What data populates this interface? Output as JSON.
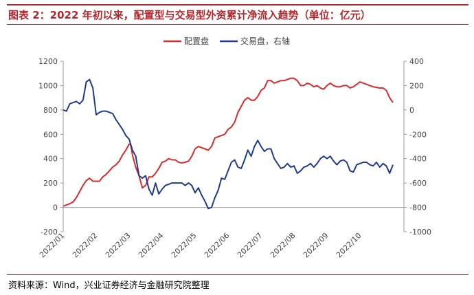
{
  "header": {
    "title": "图表 2：2022 年初以来，配置型与交易型外资累计净流入趋势（单位：亿元）"
  },
  "footer": {
    "source": "资料来源：Wind，兴业证券经济与金融研究院整理"
  },
  "colors": {
    "accent": "#b4282d",
    "series_config": "#d9292b",
    "series_trade": "#1f3a8f",
    "axis": "#999999"
  },
  "chart_data": {
    "type": "line",
    "title": "",
    "xlabel": "",
    "ylabel": "",
    "x_tick_labels": [
      "2022/01",
      "2022/02",
      "2022/03",
      "2022/04",
      "2022/05",
      "2022/06",
      "2022/07",
      "2022/08",
      "2022/09",
      "2022/10"
    ],
    "y_left": {
      "ticks": [
        "-200",
        "0",
        "200",
        "400",
        "600",
        "800",
        "1000",
        "1200"
      ],
      "ylim": [
        -200,
        1200
      ]
    },
    "y_right": {
      "ticks": [
        "-1000",
        "-800",
        "-600",
        "-400",
        "-200",
        "0",
        "200",
        "400"
      ],
      "ylim": [
        -1000,
        400
      ]
    },
    "legend": [
      "配置盘",
      "交易盘，右轴"
    ],
    "legend_position": "top-center",
    "grid": false,
    "series": [
      {
        "name": "配置盘",
        "axis": "left",
        "color": "#d9292b",
        "points": [
          [
            0.0,
            10
          ],
          [
            0.1,
            20
          ],
          [
            0.2,
            30
          ],
          [
            0.3,
            45
          ],
          [
            0.4,
            80
          ],
          [
            0.5,
            130
          ],
          [
            0.6,
            180
          ],
          [
            0.7,
            220
          ],
          [
            0.8,
            240
          ],
          [
            0.9,
            215
          ],
          [
            1.0,
            215
          ],
          [
            1.1,
            215
          ],
          [
            1.2,
            250
          ],
          [
            1.3,
            270
          ],
          [
            1.4,
            300
          ],
          [
            1.5,
            330
          ],
          [
            1.6,
            350
          ],
          [
            1.7,
            380
          ],
          [
            1.8,
            430
          ],
          [
            1.9,
            470
          ],
          [
            2.0,
            520
          ],
          [
            2.05,
            510
          ],
          [
            2.1,
            430
          ],
          [
            2.2,
            330
          ],
          [
            2.3,
            260
          ],
          [
            2.4,
            160
          ],
          [
            2.5,
            180
          ],
          [
            2.6,
            250
          ],
          [
            2.7,
            250
          ],
          [
            2.8,
            280
          ],
          [
            2.9,
            320
          ],
          [
            3.0,
            370
          ],
          [
            3.1,
            380
          ],
          [
            3.2,
            400
          ],
          [
            3.3,
            390
          ],
          [
            3.4,
            390
          ],
          [
            3.5,
            370
          ],
          [
            3.6,
            365
          ],
          [
            3.7,
            370
          ],
          [
            3.8,
            380
          ],
          [
            3.9,
            420
          ],
          [
            4.0,
            480
          ],
          [
            4.1,
            500
          ],
          [
            4.2,
            490
          ],
          [
            4.3,
            480
          ],
          [
            4.4,
            470
          ],
          [
            4.5,
            500
          ],
          [
            4.6,
            570
          ],
          [
            4.7,
            580
          ],
          [
            4.8,
            590
          ],
          [
            4.9,
            600
          ],
          [
            5.0,
            640
          ],
          [
            5.1,
            660
          ],
          [
            5.2,
            700
          ],
          [
            5.3,
            780
          ],
          [
            5.4,
            830
          ],
          [
            5.5,
            880
          ],
          [
            5.6,
            900
          ],
          [
            5.7,
            880
          ],
          [
            5.8,
            880
          ],
          [
            5.9,
            910
          ],
          [
            6.0,
            960
          ],
          [
            6.1,
            980
          ],
          [
            6.2,
            1040
          ],
          [
            6.3,
            1040
          ],
          [
            6.4,
            1020
          ],
          [
            6.5,
            1030
          ],
          [
            6.6,
            1040
          ],
          [
            6.7,
            1040
          ],
          [
            6.8,
            1050
          ],
          [
            6.9,
            1060
          ],
          [
            7.0,
            1060
          ],
          [
            7.1,
            1040
          ],
          [
            7.2,
            1000
          ],
          [
            7.3,
            1000
          ],
          [
            7.4,
            1020
          ],
          [
            7.5,
            1010
          ],
          [
            7.6,
            990
          ],
          [
            7.7,
            1000
          ],
          [
            7.8,
            980
          ],
          [
            7.9,
            970
          ],
          [
            8.0,
            1000
          ],
          [
            8.1,
            1020
          ],
          [
            8.2,
            1000
          ],
          [
            8.3,
            990
          ],
          [
            8.4,
            990
          ],
          [
            8.5,
            1000
          ],
          [
            8.6,
            1000
          ],
          [
            8.7,
            980
          ],
          [
            8.8,
            990
          ],
          [
            8.9,
            1010
          ],
          [
            9.0,
            1030
          ],
          [
            9.1,
            1020
          ],
          [
            9.2,
            1010
          ],
          [
            9.3,
            1000
          ],
          [
            9.4,
            990
          ],
          [
            9.5,
            985
          ],
          [
            9.6,
            980
          ],
          [
            9.7,
            980
          ],
          [
            9.8,
            960
          ],
          [
            9.9,
            900
          ],
          [
            10.0,
            860
          ]
        ]
      },
      {
        "name": "交易盘，右轴",
        "axis": "right",
        "color": "#1f3a8f",
        "points": [
          [
            0.0,
            0
          ],
          [
            0.1,
            -10
          ],
          [
            0.2,
            50
          ],
          [
            0.3,
            60
          ],
          [
            0.4,
            70
          ],
          [
            0.5,
            50
          ],
          [
            0.6,
            80
          ],
          [
            0.7,
            230
          ],
          [
            0.8,
            250
          ],
          [
            0.9,
            180
          ],
          [
            1.0,
            -40
          ],
          [
            1.1,
            -20
          ],
          [
            1.2,
            -10
          ],
          [
            1.3,
            -10
          ],
          [
            1.4,
            -20
          ],
          [
            1.5,
            -30
          ],
          [
            1.6,
            -80
          ],
          [
            1.7,
            -120
          ],
          [
            1.8,
            -160
          ],
          [
            1.9,
            -210
          ],
          [
            2.0,
            -240
          ],
          [
            2.1,
            -330
          ],
          [
            2.2,
            -380
          ],
          [
            2.3,
            -540
          ],
          [
            2.4,
            -560
          ],
          [
            2.5,
            -540
          ],
          [
            2.6,
            -650
          ],
          [
            2.7,
            -700
          ],
          [
            2.8,
            -600
          ],
          [
            2.9,
            -690
          ],
          [
            3.0,
            -650
          ],
          [
            3.1,
            -620
          ],
          [
            3.2,
            -610
          ],
          [
            3.3,
            -600
          ],
          [
            3.4,
            -600
          ],
          [
            3.5,
            -600
          ],
          [
            3.6,
            -600
          ],
          [
            3.7,
            -620
          ],
          [
            3.8,
            -600
          ],
          [
            3.9,
            -620
          ],
          [
            4.0,
            -680
          ],
          [
            4.1,
            -640
          ],
          [
            4.2,
            -700
          ],
          [
            4.3,
            -750
          ],
          [
            4.4,
            -810
          ],
          [
            4.5,
            -800
          ],
          [
            4.6,
            -720
          ],
          [
            4.7,
            -660
          ],
          [
            4.8,
            -560
          ],
          [
            4.9,
            -570
          ],
          [
            5.0,
            -500
          ],
          [
            5.1,
            -430
          ],
          [
            5.2,
            -410
          ],
          [
            5.3,
            -470
          ],
          [
            5.4,
            -480
          ],
          [
            5.5,
            -410
          ],
          [
            5.6,
            -330
          ],
          [
            5.7,
            -380
          ],
          [
            5.8,
            -300
          ],
          [
            5.9,
            -250
          ],
          [
            6.0,
            -300
          ],
          [
            6.1,
            -340
          ],
          [
            6.2,
            -320
          ],
          [
            6.3,
            -320
          ],
          [
            6.4,
            -400
          ],
          [
            6.5,
            -440
          ],
          [
            6.6,
            -480
          ],
          [
            6.7,
            -470
          ],
          [
            6.8,
            -440
          ],
          [
            6.9,
            -470
          ],
          [
            7.0,
            -460
          ],
          [
            7.1,
            -520
          ],
          [
            7.2,
            -500
          ],
          [
            7.3,
            -470
          ],
          [
            7.4,
            -460
          ],
          [
            7.5,
            -440
          ],
          [
            7.6,
            -470
          ],
          [
            7.7,
            -440
          ],
          [
            7.8,
            -400
          ],
          [
            7.9,
            -380
          ],
          [
            8.0,
            -400
          ],
          [
            8.1,
            -380
          ],
          [
            8.2,
            -420
          ],
          [
            8.3,
            -450
          ],
          [
            8.4,
            -420
          ],
          [
            8.5,
            -410
          ],
          [
            8.6,
            -430
          ],
          [
            8.7,
            -500
          ],
          [
            8.8,
            -510
          ],
          [
            8.9,
            -450
          ],
          [
            9.0,
            -440
          ],
          [
            9.1,
            -430
          ],
          [
            9.2,
            -430
          ],
          [
            9.3,
            -450
          ],
          [
            9.4,
            -460
          ],
          [
            9.5,
            -430
          ],
          [
            9.6,
            -470
          ],
          [
            9.7,
            -440
          ],
          [
            9.8,
            -460
          ],
          [
            9.9,
            -520
          ],
          [
            10.0,
            -450
          ]
        ]
      }
    ]
  }
}
